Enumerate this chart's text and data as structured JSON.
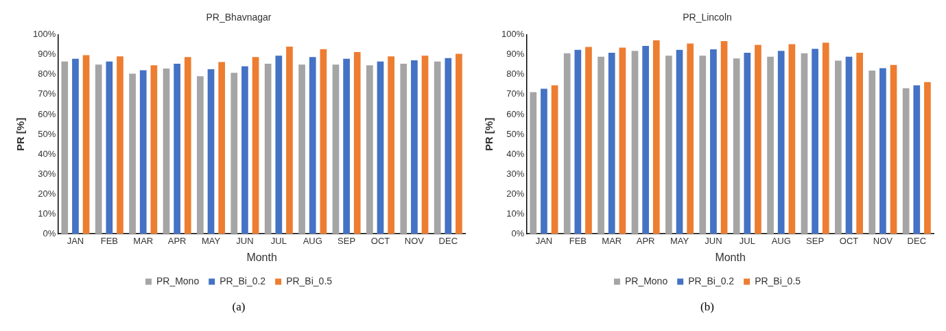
{
  "chart_data": [
    {
      "type": "bar",
      "title": "PR_Bhavnagar",
      "xlabel": "Month",
      "ylabel": "PR [%]",
      "categories": [
        "JAN",
        "FEB",
        "MAR",
        "APR",
        "MAY",
        "JUN",
        "JUL",
        "AUG",
        "SEP",
        "OCT",
        "NOV",
        "DEC"
      ],
      "series": [
        {
          "name": "PR_Mono",
          "color": "#a5a5a5",
          "values": [
            86.6,
            85,
            80.5,
            83.1,
            79.2,
            80.9,
            85.5,
            85,
            85,
            84.7,
            85.5,
            86.6
          ]
        },
        {
          "name": "PR_Bi_0.2",
          "color": "#4472c4",
          "values": [
            88,
            86.6,
            82.2,
            85.5,
            82.7,
            84.2,
            89.5,
            88.8,
            88,
            86.6,
            87.2,
            88.3
          ]
        },
        {
          "name": "PR_Bi_0.5",
          "color": "#ed7d31",
          "values": [
            89.8,
            89.2,
            84.7,
            88.8,
            86.3,
            88.8,
            94.1,
            92.8,
            91.3,
            89.2,
            89.5,
            90.5
          ]
        }
      ],
      "ylim": [
        0,
        100
      ],
      "yticks": [
        {
          "value": 0,
          "label": "0%"
        },
        {
          "value": 10,
          "label": "10%"
        },
        {
          "value": 20,
          "label": "20%"
        },
        {
          "value": 30,
          "label": "30%"
        },
        {
          "value": 40,
          "label": "40%"
        },
        {
          "value": 50,
          "label": "50%"
        },
        {
          "value": 60,
          "label": "60%"
        },
        {
          "value": 70,
          "label": "70%"
        },
        {
          "value": 80,
          "label": "80%"
        },
        {
          "value": 90,
          "label": "90%"
        },
        {
          "value": 100,
          "label": "100%"
        }
      ],
      "grid": false,
      "legend": "bottom",
      "annotations": [
        "(a)"
      ]
    },
    {
      "type": "bar",
      "title": "PR_Lincoln",
      "xlabel": "Month",
      "ylabel": "PR [%]",
      "categories": [
        "JAN",
        "FEB",
        "MAR",
        "APR",
        "MAY",
        "JUN",
        "JUL",
        "AUG",
        "SEP",
        "OCT",
        "NOV",
        "DEC"
      ],
      "series": [
        {
          "name": "PR_Mono",
          "color": "#a5a5a5",
          "values": [
            71.2,
            90.7,
            89,
            91.9,
            89.5,
            89.5,
            88.1,
            89,
            90.7,
            87,
            82,
            73.2
          ]
        },
        {
          "name": "PR_Bi_0.2",
          "color": "#4472c4",
          "values": [
            72.9,
            92.4,
            91,
            94.4,
            92.4,
            92.7,
            91,
            91.9,
            93,
            89,
            83.2,
            74.6
          ]
        },
        {
          "name": "PR_Bi_0.5",
          "color": "#ed7d31",
          "values": [
            74.6,
            93.9,
            93.6,
            97.3,
            95.6,
            96.8,
            94.9,
            95.3,
            96.1,
            91,
            84.9,
            76.3
          ]
        }
      ],
      "ylim": [
        0,
        100
      ],
      "yticks": [
        {
          "value": 0,
          "label": "0%"
        },
        {
          "value": 10,
          "label": "10%"
        },
        {
          "value": 20,
          "label": "20%"
        },
        {
          "value": 30,
          "label": "30%"
        },
        {
          "value": 40,
          "label": "40%"
        },
        {
          "value": 50,
          "label": "50%"
        },
        {
          "value": 60,
          "label": "60%"
        },
        {
          "value": 70,
          "label": "70%"
        },
        {
          "value": 80,
          "label": "80%"
        },
        {
          "value": 90,
          "label": "90%"
        },
        {
          "value": 100,
          "label": "100%"
        }
      ],
      "grid": false,
      "legend": "bottom",
      "annotations": [
        "(b)"
      ]
    }
  ]
}
